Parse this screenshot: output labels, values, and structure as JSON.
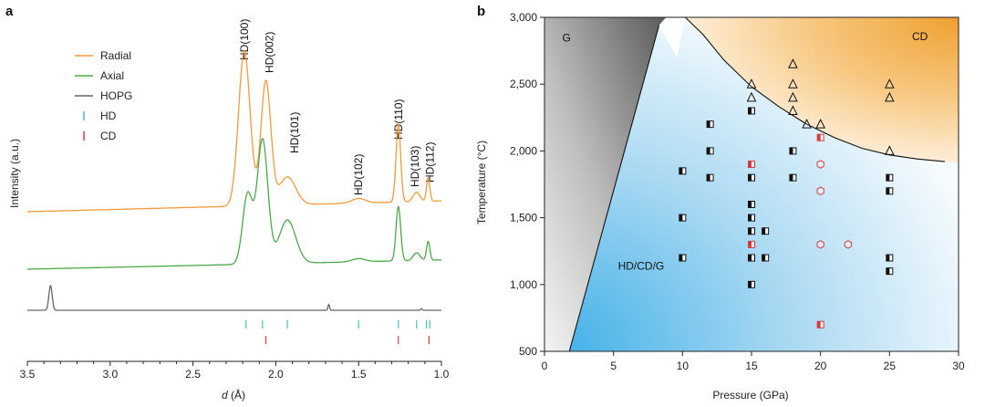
{
  "colors": {
    "radial": "#f29a3a",
    "axial": "#4aa84a",
    "hopg": "#666666",
    "hd": "#3fbfbf",
    "cd": "#d63a3a",
    "cd_region": "#f0a030",
    "hdcdg_region": "#3fb0e8",
    "g_region": "#707070"
  },
  "chart_data": [
    {
      "panel": "a",
      "type": "line",
      "xlabel_italic": "d",
      "xlabel_unit": " (Å)",
      "ylabel": "Intensity (a.u.)",
      "xlim": [
        3.5,
        1.0
      ],
      "x_reversed": true,
      "x_ticks": [
        {
          "v": 3.5,
          "label": "3.5"
        },
        {
          "v": 3.0,
          "label": "3.0"
        },
        {
          "v": 2.5,
          "label": "2.5"
        },
        {
          "v": 2.0,
          "label": "2.0"
        },
        {
          "v": 1.5,
          "label": "1.5"
        },
        {
          "v": 1.0,
          "label": "1.0"
        }
      ],
      "legend": {
        "placement": "top-left",
        "entries": [
          {
            "label": "Radial",
            "color": "#f29a3a",
            "mark": "line"
          },
          {
            "label": "Axial",
            "color": "#4aa84a",
            "mark": "line"
          },
          {
            "label": "HOPG",
            "color": "#666666",
            "mark": "line"
          },
          {
            "label": "HD",
            "color": "#3fbfbf",
            "mark": "tick"
          },
          {
            "label": "CD",
            "color": "#d63a3a",
            "mark": "tick"
          }
        ]
      },
      "series": [
        {
          "name": "Radial",
          "color": "#f29a3a",
          "baseline": 0.55,
          "tail": 0.62,
          "peaks": [
            {
              "d": 2.19,
              "h": 1.0,
              "w": 0.035
            },
            {
              "d": 2.06,
              "h": 0.8,
              "w": 0.03
            },
            {
              "d": 1.93,
              "h": 0.18,
              "w": 0.05
            },
            {
              "d": 1.5,
              "h": 0.03,
              "w": 0.04
            },
            {
              "d": 1.26,
              "h": 0.5,
              "w": 0.014
            },
            {
              "d": 1.15,
              "h": 0.06,
              "w": 0.02
            },
            {
              "d": 1.08,
              "h": 0.15,
              "w": 0.01
            }
          ]
        },
        {
          "name": "Axial",
          "color": "#4aa84a",
          "baseline": 0.3,
          "tail": 0.36,
          "peaks": [
            {
              "d": 2.17,
              "h": 0.45,
              "w": 0.03
            },
            {
              "d": 2.08,
              "h": 0.8,
              "w": 0.032
            },
            {
              "d": 1.93,
              "h": 0.28,
              "w": 0.05
            },
            {
              "d": 1.5,
              "h": 0.02,
              "w": 0.04
            },
            {
              "d": 1.26,
              "h": 0.35,
              "w": 0.014
            },
            {
              "d": 1.15,
              "h": 0.05,
              "w": 0.02
            },
            {
              "d": 1.08,
              "h": 0.12,
              "w": 0.01
            }
          ]
        },
        {
          "name": "HOPG",
          "color": "#666666",
          "baseline": 0.0,
          "tail": 0.0,
          "peaks": [
            {
              "d": 3.36,
              "h": 0.3,
              "w": 0.01
            },
            {
              "d": 1.68,
              "h": 0.07,
              "w": 0.005
            },
            {
              "d": 1.12,
              "h": 0.02,
              "w": 0.005
            }
          ]
        }
      ],
      "reference_ticks": {
        "HD": [
          2.18,
          2.08,
          1.93,
          1.5,
          1.26,
          1.15,
          1.09,
          1.07
        ],
        "CD": [
          2.06,
          1.26,
          1.075
        ]
      },
      "peak_labels": [
        {
          "label": "HD(100)",
          "d": 2.19
        },
        {
          "label": "HD(002)",
          "d": 2.06
        },
        {
          "label": "HD(101)",
          "d": 1.93
        },
        {
          "label": "HD(102)",
          "d": 1.5
        },
        {
          "label": "HD(110)",
          "d": 1.26
        },
        {
          "label": "HD(103)",
          "d": 1.15
        },
        {
          "label": "HD(112)",
          "d": 1.08
        }
      ]
    },
    {
      "panel": "b",
      "type": "scatter",
      "xlabel": "Pressure (GPa)",
      "ylabel": "Temperature (°C)",
      "xlim": [
        0,
        30
      ],
      "ylim": [
        500,
        3000
      ],
      "x_ticks": [
        {
          "v": 0,
          "label": "0"
        },
        {
          "v": 5,
          "label": "5"
        },
        {
          "v": 10,
          "label": "10"
        },
        {
          "v": 15,
          "label": "15"
        },
        {
          "v": 20,
          "label": "20"
        },
        {
          "v": 25,
          "label": "25"
        },
        {
          "v": 30,
          "label": "30"
        }
      ],
      "y_ticks": [
        {
          "v": 500,
          "label": "500"
        },
        {
          "v": 1000,
          "label": "1,000"
        },
        {
          "v": 1500,
          "label": "1,500"
        },
        {
          "v": 2000,
          "label": "2,000"
        },
        {
          "v": 2500,
          "label": "2,500"
        },
        {
          "v": 3000,
          "label": "3,000"
        }
      ],
      "regions": [
        {
          "label": "G",
          "at": [
            1.6,
            2820
          ]
        },
        {
          "label": "CD",
          "at": [
            27.2,
            2830
          ]
        },
        {
          "label": "HD/CD/G",
          "at": [
            7.0,
            1110
          ]
        }
      ],
      "boundaries": {
        "g_line": [
          [
            1.8,
            500
          ],
          [
            8.3,
            2940
          ]
        ],
        "cd_curve": [
          [
            10.2,
            3000
          ],
          [
            11.5,
            2870
          ],
          [
            13,
            2680
          ],
          [
            15,
            2480
          ],
          [
            17,
            2330
          ],
          [
            19,
            2200
          ],
          [
            21,
            2100
          ],
          [
            23,
            2020
          ],
          [
            25,
            1970
          ],
          [
            27,
            1940
          ],
          [
            29,
            1920
          ]
        ]
      },
      "series": [
        {
          "name": "triangles",
          "marker": "triangle",
          "points": [
            [
              15,
              2500
            ],
            [
              15,
              2400
            ],
            [
              18,
              2650
            ],
            [
              18,
              2500
            ],
            [
              18,
              2400
            ],
            [
              18,
              2300
            ],
            [
              19,
              2200
            ],
            [
              20,
              2200
            ],
            [
              25,
              2500
            ],
            [
              25,
              2400
            ],
            [
              25,
              2000
            ]
          ]
        },
        {
          "name": "half-filled squares",
          "marker": "half-square",
          "color": "#111111",
          "points": [
            [
              10,
              1850
            ],
            [
              10,
              1500
            ],
            [
              10,
              1200
            ],
            [
              12,
              2200
            ],
            [
              12,
              2000
            ],
            [
              12,
              1800
            ],
            [
              15,
              2300
            ],
            [
              15,
              1800
            ],
            [
              15,
              1600
            ],
            [
              15,
              1500
            ],
            [
              15,
              1400
            ],
            [
              15,
              1200
            ],
            [
              15,
              1000
            ],
            [
              16,
              1400
            ],
            [
              16,
              1200
            ],
            [
              18,
              2000
            ],
            [
              18,
              1800
            ],
            [
              25,
              1800
            ],
            [
              25,
              1700
            ],
            [
              25,
              1200
            ],
            [
              25,
              1100
            ]
          ]
        },
        {
          "name": "red half-filled squares",
          "marker": "half-square",
          "color": "#d63a3a",
          "points": [
            [
              15,
              1900
            ],
            [
              15,
              1300
            ],
            [
              20,
              2100
            ],
            [
              20,
              700
            ]
          ]
        },
        {
          "name": "red hexagons",
          "marker": "hexagon",
          "color": "#d63a3a",
          "points": [
            [
              20,
              1900
            ],
            [
              20,
              1700
            ],
            [
              20,
              1300
            ],
            [
              22,
              1300
            ]
          ]
        }
      ]
    }
  ]
}
